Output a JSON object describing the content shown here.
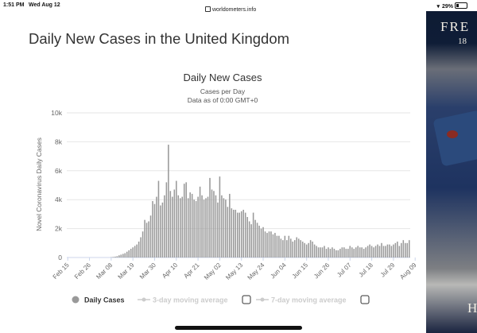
{
  "status_bar": {
    "time": "1:51 PM",
    "date": "Wed Aug 12",
    "url": "worldometers.info",
    "battery": "29%",
    "battery_level": 0.29
  },
  "page": {
    "heading": "Daily New Cases in the United Kingdom"
  },
  "ad": {
    "brand": "FRE",
    "brand_sub": "18",
    "bottom_letter": "H"
  },
  "legend": {
    "items": [
      {
        "label": "Daily Cases",
        "color": "#999999",
        "active": true
      },
      {
        "label": "3-day moving average",
        "color": "#cccccc",
        "active": false
      },
      {
        "label": "7-day moving average",
        "color": "#cccccc",
        "active": false
      }
    ]
  },
  "chart_data": {
    "type": "bar",
    "title": "Daily New Cases",
    "subtitle_lines": [
      "Cases per Day",
      "Data as of 0:00 GMT+0"
    ],
    "ylabel": "Novel Coronavirus Daily Cases",
    "xlabel": "",
    "ylim": [
      0,
      10000
    ],
    "y_ticks": [
      0,
      2000,
      4000,
      6000,
      8000,
      10000
    ],
    "y_tick_labels": [
      "0",
      "2k",
      "4k",
      "6k",
      "8k",
      "10k"
    ],
    "x_tick_labels": [
      "Feb 15",
      "Feb 26",
      "Mar 08",
      "Mar 19",
      "Mar 30",
      "Apr 10",
      "Apr 21",
      "May 02",
      "May 13",
      "May 24",
      "Jun 04",
      "Jun 15",
      "Jun 26",
      "Jul 07",
      "Jul 18",
      "Jul 29",
      "Aug 09"
    ],
    "bar_color": "#999999",
    "grid": true,
    "legend_position": "bottom",
    "series": [
      {
        "name": "Daily Cases",
        "values": [
          0,
          0,
          0,
          0,
          0,
          0,
          0,
          0,
          0,
          0,
          0,
          0,
          0,
          0,
          0,
          0,
          0,
          0,
          0,
          0,
          0,
          0,
          20,
          40,
          60,
          90,
          150,
          200,
          250,
          300,
          400,
          500,
          600,
          700,
          800,
          900,
          1100,
          1400,
          1800,
          2600,
          2400,
          2500,
          2900,
          3900,
          3700,
          4200,
          5300,
          3600,
          3800,
          4300,
          5200,
          7800,
          4600,
          4200,
          4700,
          5300,
          4300,
          4100,
          4200,
          5100,
          5200,
          4100,
          4500,
          4400,
          4000,
          3900,
          4200,
          4900,
          4300,
          4000,
          4100,
          4200,
          5500,
          4700,
          4600,
          4300,
          3800,
          5600,
          4300,
          4100,
          4000,
          3500,
          4400,
          3400,
          3300,
          3300,
          3100,
          3100,
          3200,
          3300,
          3100,
          2800,
          2500,
          2300,
          3100,
          2600,
          2400,
          2200,
          2000,
          2100,
          1800,
          1700,
          1800,
          1800,
          1600,
          1700,
          1500,
          1500,
          1300,
          1200,
          1500,
          1200,
          1500,
          1300,
          1100,
          1200,
          1400,
          1300,
          1200,
          1100,
          1000,
          900,
          1000,
          1200,
          1100,
          900,
          800,
          700,
          700,
          700,
          800,
          600,
          700,
          600,
          700,
          600,
          500,
          500,
          600,
          700,
          700,
          600,
          600,
          800,
          700,
          600,
          700,
          800,
          700,
          700,
          600,
          700,
          800,
          900,
          800,
          700,
          800,
          900,
          800,
          1000,
          800,
          800,
          900,
          900,
          800,
          900,
          1000,
          1100,
          800,
          1000,
          1200,
          1000,
          1000,
          1200
        ]
      }
    ]
  }
}
